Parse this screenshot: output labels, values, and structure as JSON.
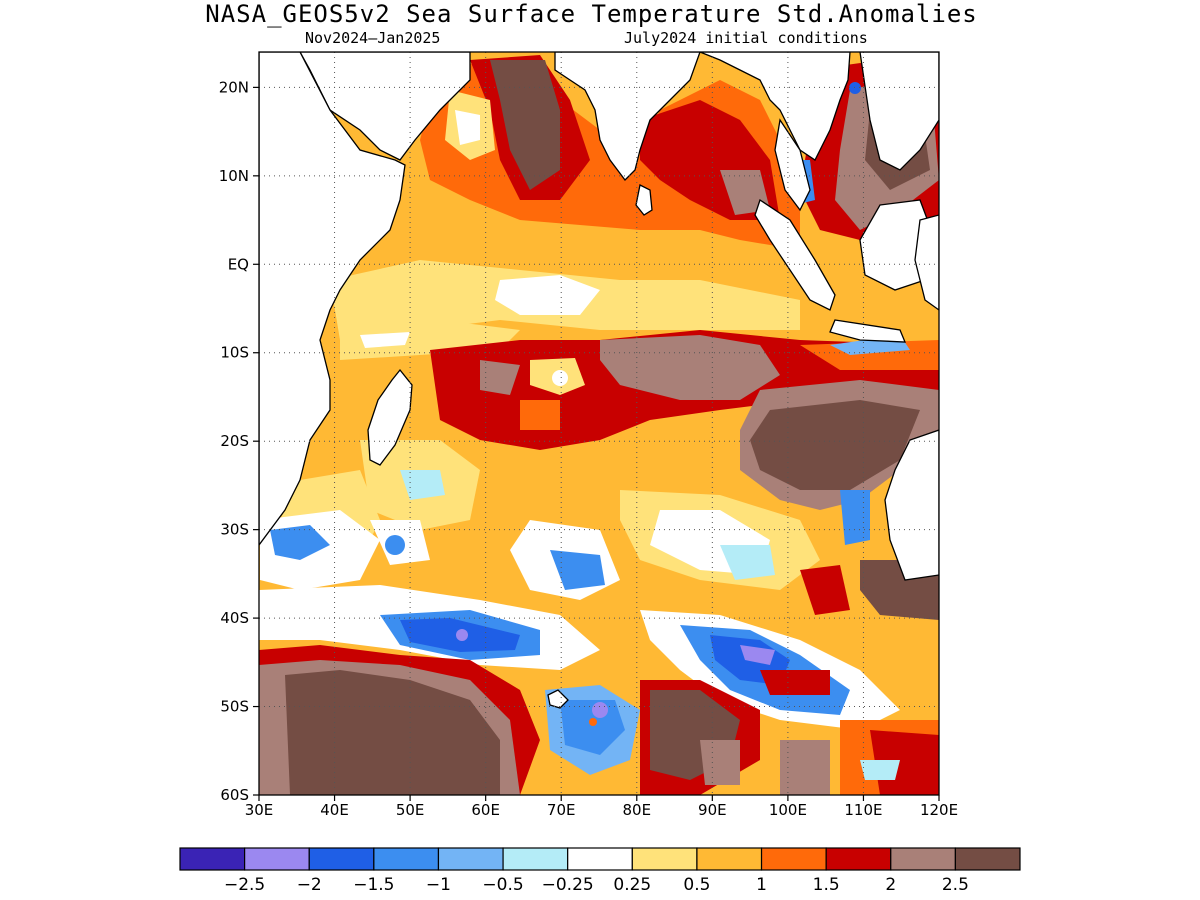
{
  "header": {
    "title": "NASA_GEOS5v2 Sea Surface Temperature Std.Anomalies",
    "forecast_period": "Nov2024–Jan2025",
    "initial_conditions": "July2024 initial conditions"
  },
  "map": {
    "region": "Indian Ocean",
    "lon_range": [
      30,
      120
    ],
    "lat_range": [
      -60,
      24
    ],
    "lat_ticks": [
      {
        "lat": 20,
        "label": "20N"
      },
      {
        "lat": 10,
        "label": "10N"
      },
      {
        "lat": 0,
        "label": "EQ"
      },
      {
        "lat": -10,
        "label": "10S"
      },
      {
        "lat": -20,
        "label": "20S"
      },
      {
        "lat": -30,
        "label": "30S"
      },
      {
        "lat": -40,
        "label": "40S"
      },
      {
        "lat": -50,
        "label": "50S"
      },
      {
        "lat": -60,
        "label": "60S"
      }
    ],
    "lon_ticks": [
      {
        "lon": 30,
        "label": "30E"
      },
      {
        "lon": 40,
        "label": "40E"
      },
      {
        "lon": 50,
        "label": "50E"
      },
      {
        "lon": 60,
        "label": "60E"
      },
      {
        "lon": 70,
        "label": "70E"
      },
      {
        "lon": 80,
        "label": "80E"
      },
      {
        "lon": 90,
        "label": "90E"
      },
      {
        "lon": 100,
        "label": "100E"
      },
      {
        "lon": 110,
        "label": "110E"
      },
      {
        "lon": 120,
        "label": "120E"
      }
    ],
    "grid": true
  },
  "legend": {
    "colors": [
      "#3a23b5",
      "#9b88f0",
      "#1f5fe6",
      "#3c8ef0",
      "#73b4f5",
      "#b4ecf7",
      "#ffffff",
      "#ffe27a",
      "#ffb934",
      "#ff6a0a",
      "#c80000",
      "#a98078",
      "#744d44"
    ],
    "labels": [
      "−2.5",
      "−2",
      "−1.5",
      "−1",
      "−0.5",
      "−0.25",
      "0.25",
      "0.5",
      "1",
      "1.5",
      "2",
      "2.5"
    ]
  }
}
